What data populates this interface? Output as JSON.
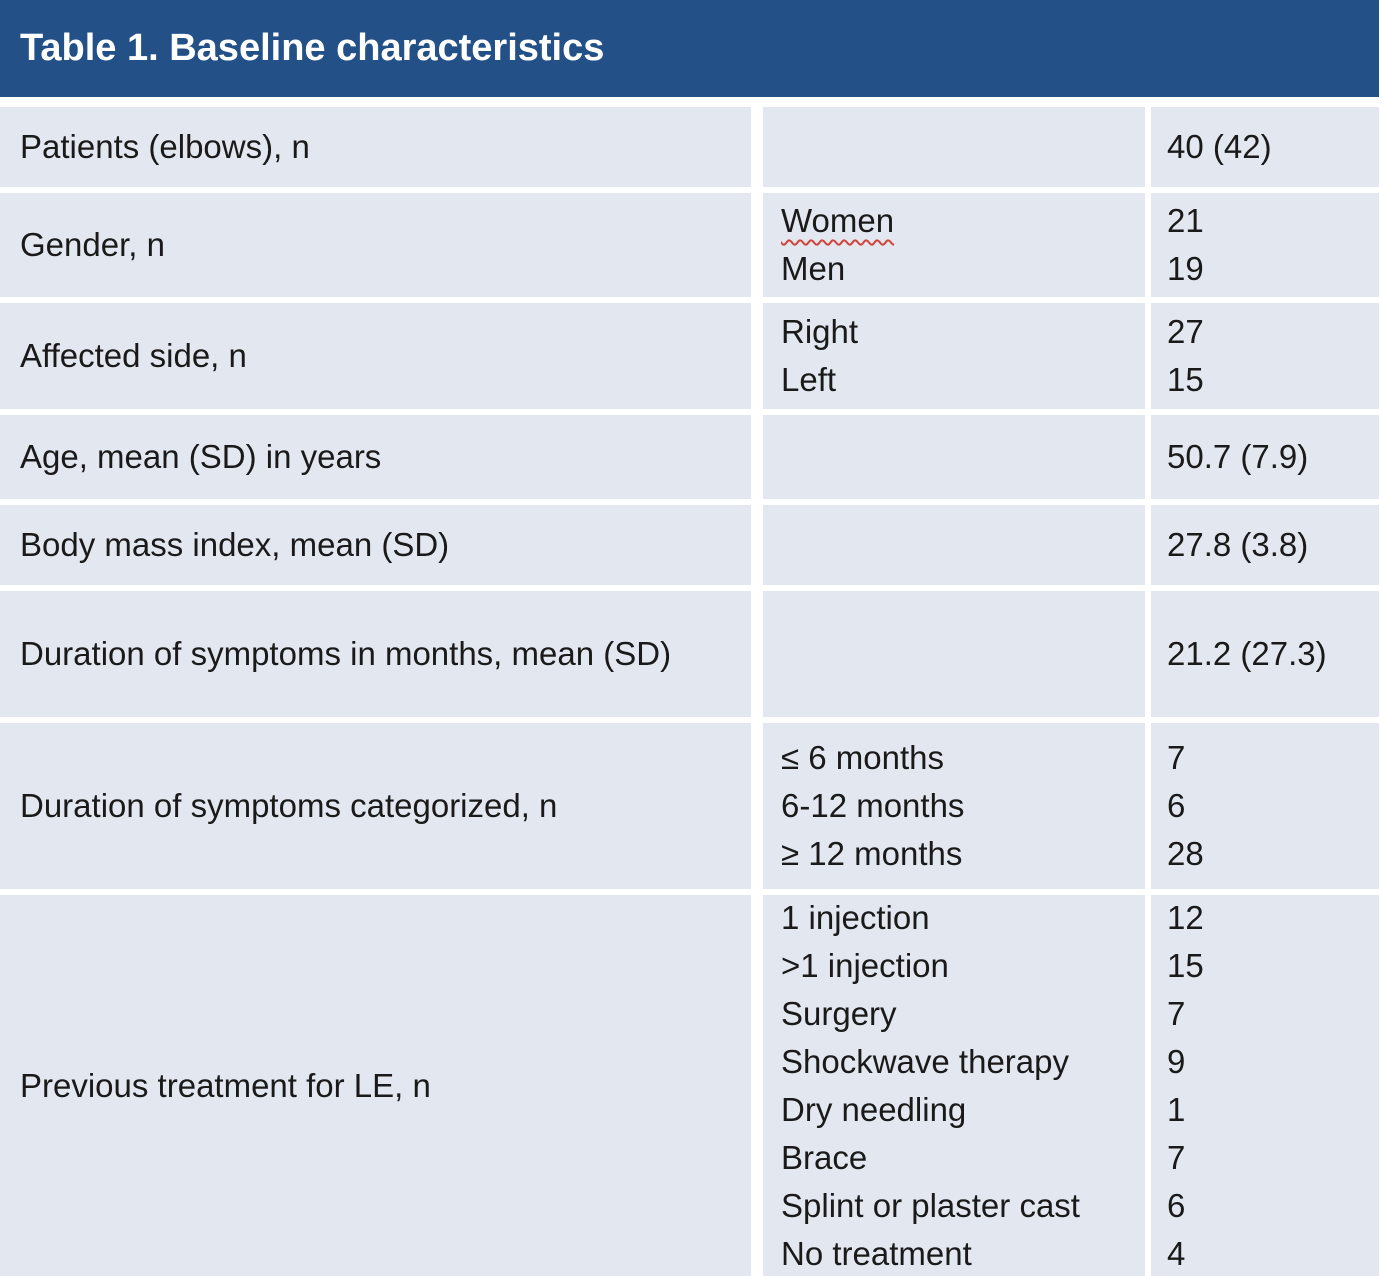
{
  "table": {
    "title": "Table 1. Baseline characteristics",
    "colors": {
      "header_bg": "#235087",
      "row_bg": "#E3E7F0",
      "title_text": "#FFFFFF",
      "body_text": "#1A1A1A",
      "spellcheck_underline": "#D0453A"
    },
    "rows": [
      {
        "label": "Patients (elbows), n",
        "entries": [
          {
            "category": "",
            "value": "40 (42)"
          }
        ]
      },
      {
        "label": "Gender, n",
        "entries": [
          {
            "category": "Women",
            "value": "21"
          },
          {
            "category": "Men",
            "value": "19"
          }
        ]
      },
      {
        "label": "Affected side, n",
        "entries": [
          {
            "category": "Right",
            "value": "27"
          },
          {
            "category": "Left",
            "value": "15"
          }
        ]
      },
      {
        "label": "Age, mean (SD) in years",
        "entries": [
          {
            "category": "",
            "value": "50.7 (7.9)"
          }
        ]
      },
      {
        "label": "Body mass index, mean (SD)",
        "entries": [
          {
            "category": "",
            "value": "27.8 (3.8)"
          }
        ]
      },
      {
        "label": "Duration of symptoms in months, mean (SD)",
        "entries": [
          {
            "category": "",
            "value": "21.2 (27.3)"
          }
        ]
      },
      {
        "label": "Duration of symptoms categorized, n",
        "entries": [
          {
            "category": "≤ 6 months",
            "value": "7"
          },
          {
            "category": "6-12 months",
            "value": "6"
          },
          {
            "category": "≥ 12 months",
            "value": "28"
          }
        ]
      },
      {
        "label": "Previous treatment for LE, n",
        "entries": [
          {
            "category": "1 injection",
            "value": "12"
          },
          {
            "category": ">1 injection",
            "value": "15"
          },
          {
            "category": "Surgery",
            "value": "7"
          },
          {
            "category": "Shockwave therapy",
            "value": "9"
          },
          {
            "category": "Dry needling",
            "value": "1"
          },
          {
            "category": "Brace",
            "value": "7"
          },
          {
            "category": "Splint or plaster cast",
            "value": "6"
          },
          {
            "category": "No treatment",
            "value": "4"
          }
        ]
      }
    ]
  }
}
